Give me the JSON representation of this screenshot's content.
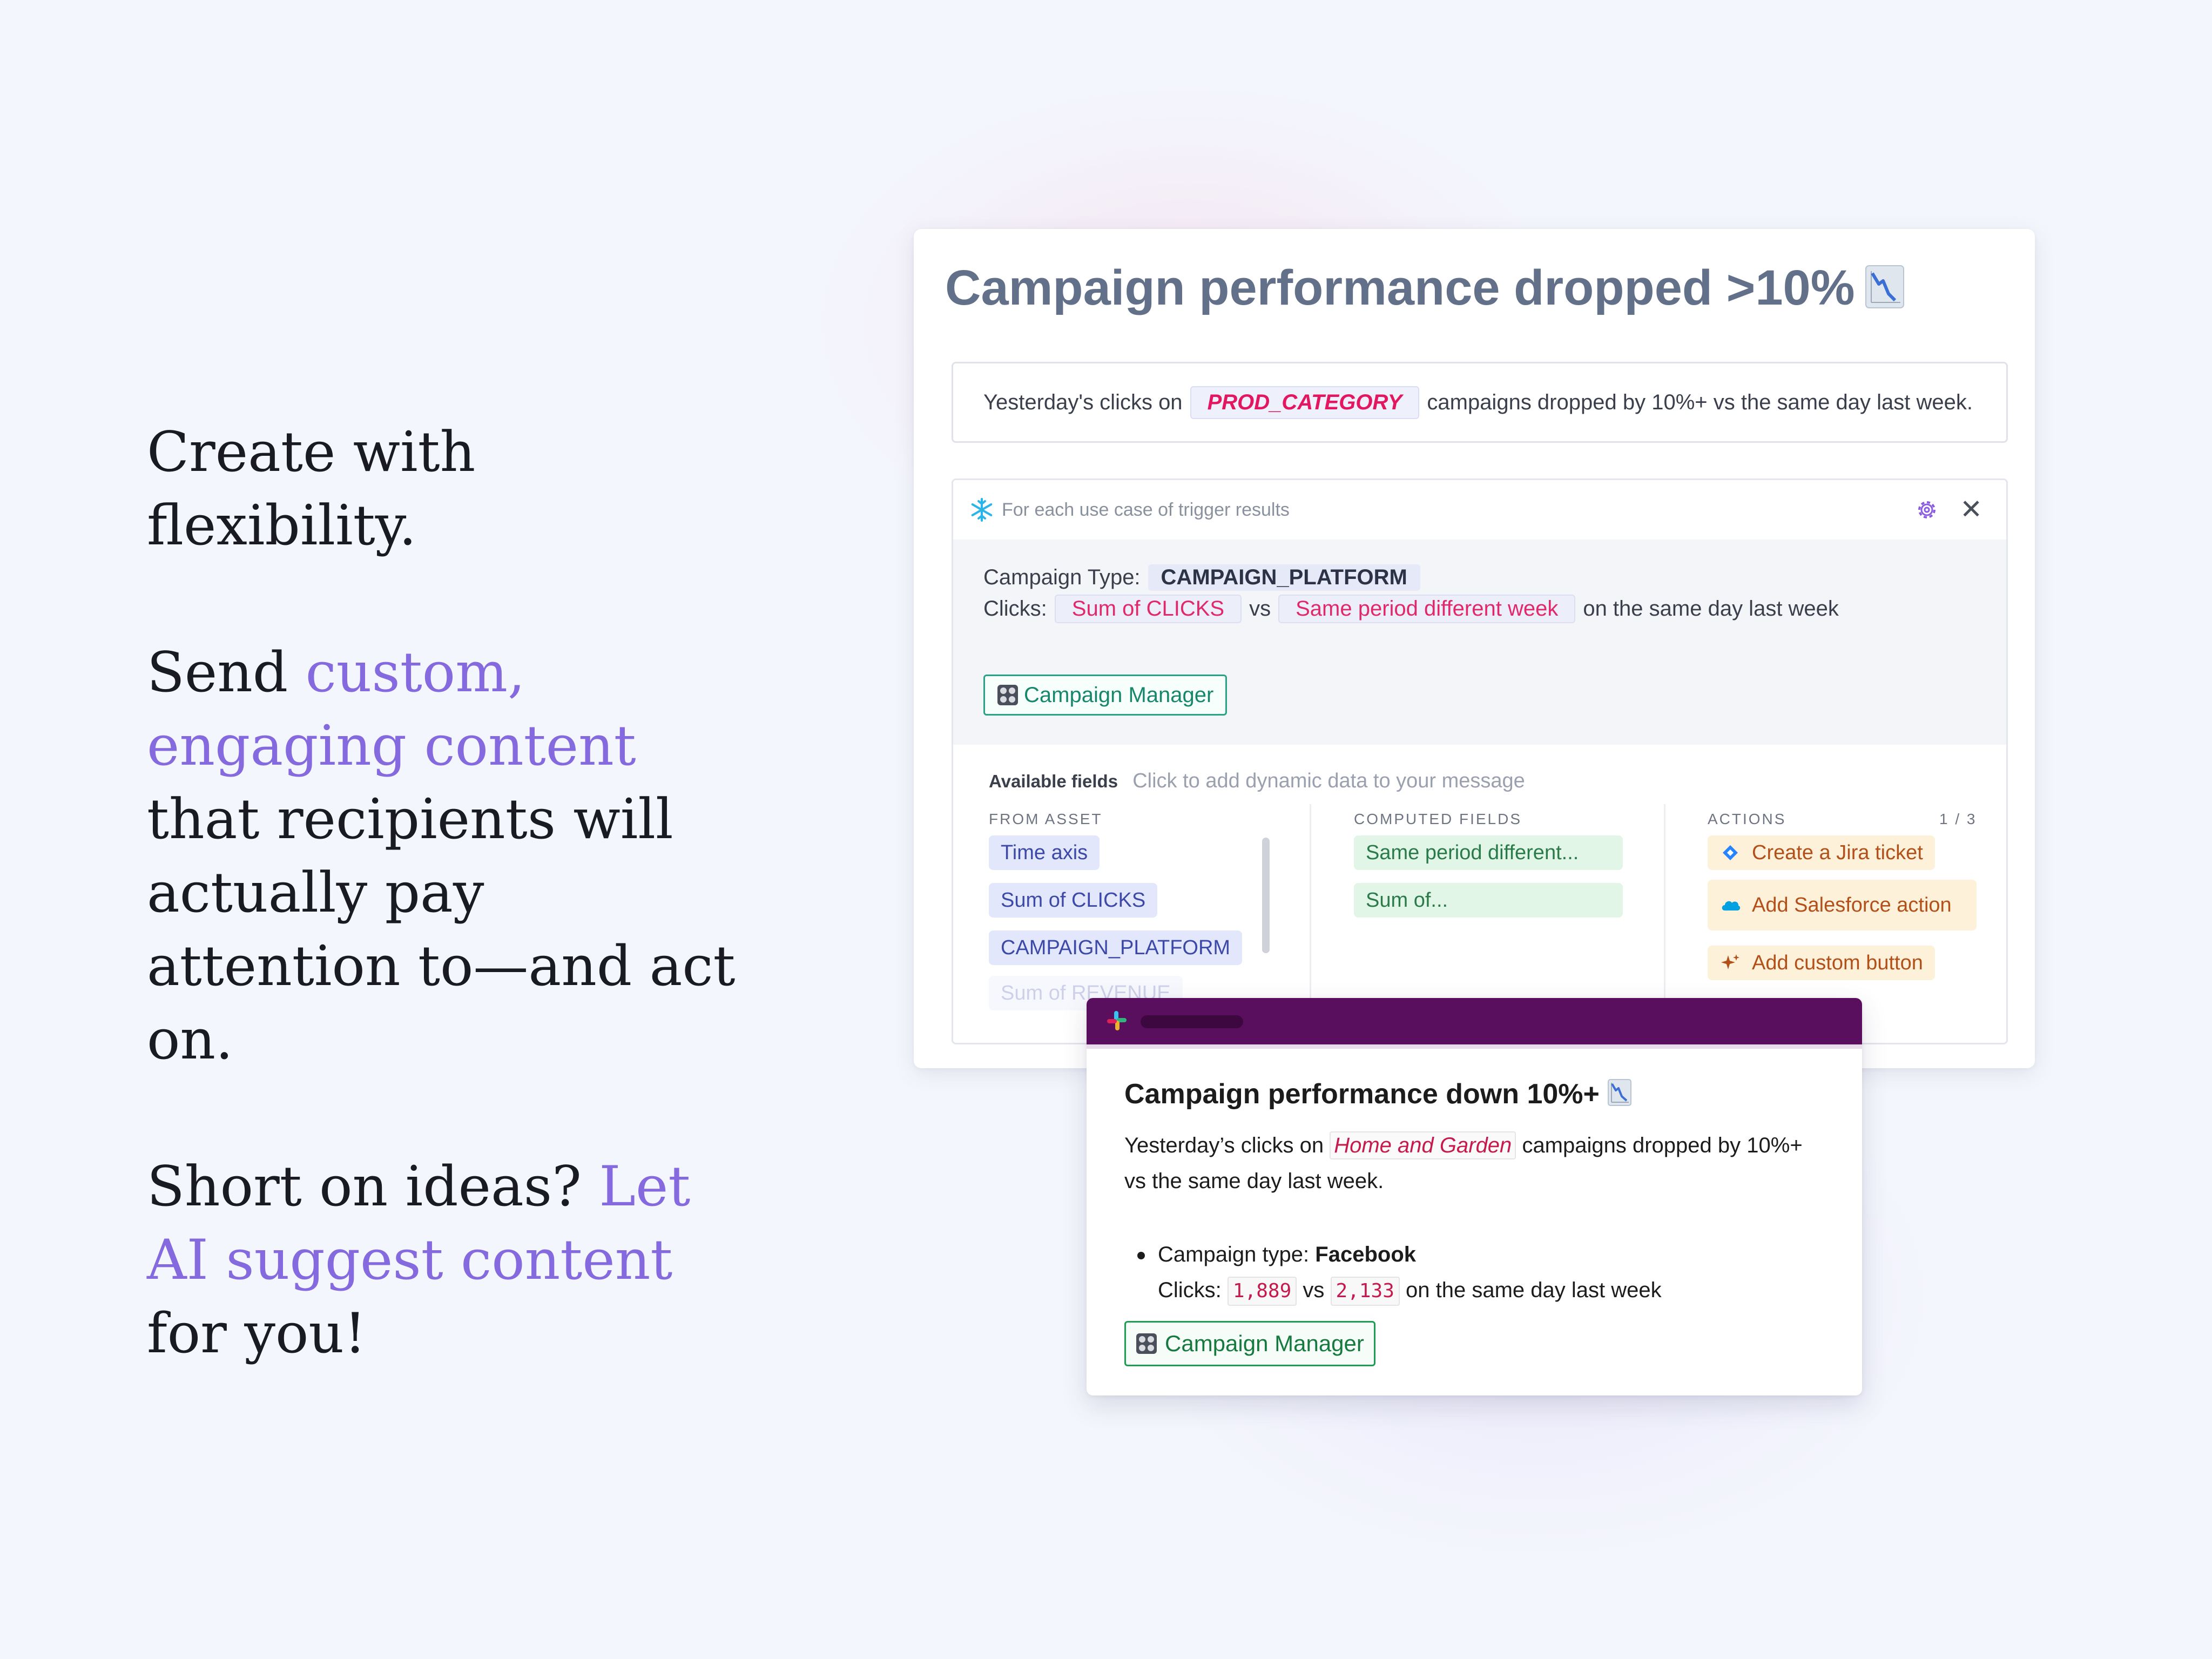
{
  "left_copy": {
    "p1": "Create with flexibility.",
    "p2_start": "Send ",
    "p2_accent": "custom, engaging content",
    "p2_end": " that recipients will actually pay attention to—and act on.",
    "p3_start": "Short on ideas?  ",
    "p3_accent": "Let AI suggest content",
    "p3_end": " for you!",
    "accent_color": "#8569de"
  },
  "alert_card": {
    "title": "Campaign performance dropped >10%",
    "title_icon": "chart-decreasing-icon",
    "description": {
      "before": "Yesterday's clicks on",
      "token": "PROD_CATEGORY",
      "after": "campaigns dropped by 10%+ vs the same day last week."
    },
    "for_each": {
      "header": "For each use case of trigger results",
      "header_icon": "snowflake-icon",
      "settings_icon": "gear-icon",
      "close_icon": "close-icon",
      "campaign_type_label": "Campaign Type:",
      "campaign_type_token": "CAMPAIGN_PLATFORM",
      "clicks_label": "Clicks:",
      "clicks_token": "Sum of CLICKS",
      "vs": "vs",
      "compare_token": "Same period different week",
      "clicks_suffix": "on the same day last week",
      "button_label": "Campaign Manager",
      "button_icon": "campaign-manager-icon"
    },
    "available_fields": {
      "label": "Available fields",
      "hint": "Click to add dynamic data to your message",
      "from_asset": {
        "label": "FROM ASSET",
        "items": [
          "Time axis",
          "Sum of CLICKS",
          "CAMPAIGN_PLATFORM",
          "Sum of REVENUE"
        ]
      },
      "computed_fields": {
        "label": "COMPUTED FIELDS",
        "items": [
          "Same period different...",
          "Sum of..."
        ]
      },
      "actions": {
        "label": "ACTIONS",
        "pager": "1 / 3",
        "items": [
          {
            "label": "Create a Jira ticket",
            "icon": "jira-icon"
          },
          {
            "label": "Add Salesforce action",
            "icon": "salesforce-cloud-icon"
          },
          {
            "label": "Add custom button",
            "icon": "sparkle-icon"
          }
        ]
      }
    }
  },
  "slack_message": {
    "logo": "slack-logo-icon",
    "title": "Campaign performance down 10%+",
    "title_icon": "chart-decreasing-icon",
    "para_before": "Yesterday’s clicks on",
    "para_token": "Home and Garden",
    "para_after": "campaigns dropped by 10%+ vs the same day last week.",
    "campaign_type_label": "Campaign type:",
    "campaign_type_value": "Facebook",
    "clicks_label": "Clicks:",
    "clicks_value": "1,889",
    "vs": "vs",
    "compare_value": "2,133",
    "clicks_suffix": "on the same day last week",
    "button_label": "Campaign Manager",
    "button_icon": "campaign-manager-icon",
    "header_color": "#5a0f5e"
  }
}
